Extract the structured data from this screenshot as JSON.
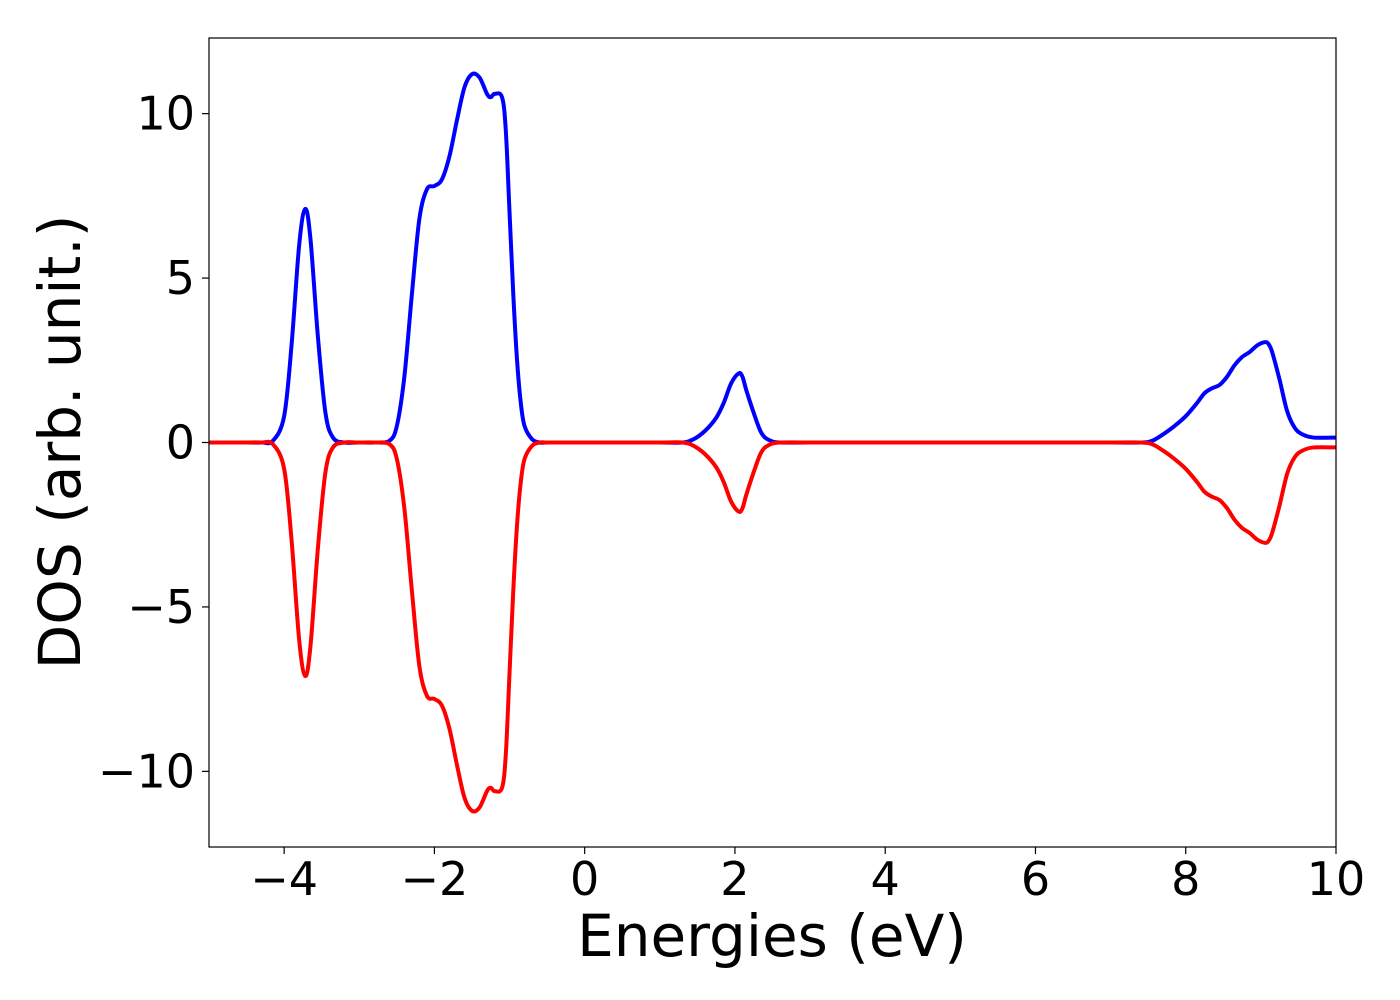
{
  "chart_data": {
    "type": "line",
    "xlabel": "Energies (eV)",
    "ylabel": "DOS (arb. unit.)",
    "xlim": [
      -5,
      10
    ],
    "ylim": [
      -12.3,
      12.3
    ],
    "xticks": [
      -4,
      -2,
      0,
      2,
      4,
      6,
      8,
      10
    ],
    "yticks": [
      -10,
      -5,
      0,
      5,
      10
    ],
    "xtick_labels": [
      "−4",
      "−2",
      "0",
      "2",
      "4",
      "6",
      "8",
      "10"
    ],
    "ytick_labels": [
      "−10",
      "−5",
      "0",
      "5",
      "10"
    ],
    "grid": false,
    "series": [
      {
        "color": "#0000ff",
        "x": [
          -5.0,
          -4.5,
          -4.3,
          -4.15,
          -4.0,
          -3.9,
          -3.8,
          -3.72,
          -3.65,
          -3.55,
          -3.45,
          -3.35,
          -3.2,
          -3.0,
          -2.8,
          -2.6,
          -2.5,
          -2.4,
          -2.3,
          -2.2,
          -2.1,
          -2.0,
          -1.9,
          -1.8,
          -1.7,
          -1.6,
          -1.5,
          -1.4,
          -1.3,
          -1.25,
          -1.2,
          -1.1,
          -1.05,
          -1.0,
          -0.95,
          -0.9,
          -0.85,
          -0.8,
          -0.7,
          -0.6,
          -0.5,
          -0.3,
          0.0,
          0.5,
          1.0,
          1.3,
          1.45,
          1.6,
          1.75,
          1.85,
          1.95,
          2.05,
          2.1,
          2.15,
          2.25,
          2.35,
          2.45,
          2.6,
          3.0,
          4.0,
          5.0,
          6.0,
          7.0,
          7.4,
          7.55,
          7.7,
          7.85,
          8.0,
          8.15,
          8.25,
          8.35,
          8.45,
          8.55,
          8.65,
          8.75,
          8.85,
          8.95,
          9.05,
          9.1,
          9.15,
          9.25,
          9.35,
          9.45,
          9.55,
          9.7,
          10.0
        ],
        "y": [
          0,
          0,
          0,
          0.05,
          0.8,
          3.0,
          6.0,
          7.1,
          6.2,
          3.2,
          0.9,
          0.15,
          0.0,
          0.0,
          0.0,
          0.05,
          0.5,
          2.0,
          4.5,
          6.8,
          7.7,
          7.8,
          8.0,
          8.7,
          9.8,
          10.8,
          11.2,
          11.1,
          10.6,
          10.5,
          10.6,
          10.5,
          9.5,
          7.0,
          4.5,
          2.5,
          1.2,
          0.5,
          0.1,
          0.0,
          0.0,
          0.0,
          0.0,
          0.0,
          0.0,
          0.0,
          0.1,
          0.35,
          0.75,
          1.2,
          1.8,
          2.1,
          2.0,
          1.6,
          0.9,
          0.3,
          0.08,
          0.0,
          0.0,
          0.0,
          0.0,
          0.0,
          0.0,
          0.0,
          0.05,
          0.25,
          0.5,
          0.8,
          1.2,
          1.5,
          1.65,
          1.75,
          2.0,
          2.35,
          2.6,
          2.75,
          2.95,
          3.05,
          3.0,
          2.75,
          1.9,
          0.95,
          0.45,
          0.25,
          0.15,
          0.15
        ]
      },
      {
        "color": "#ff0000",
        "x": [
          -5.0,
          -4.5,
          -4.3,
          -4.15,
          -4.0,
          -3.9,
          -3.8,
          -3.72,
          -3.65,
          -3.55,
          -3.45,
          -3.35,
          -3.2,
          -3.0,
          -2.8,
          -2.6,
          -2.5,
          -2.4,
          -2.3,
          -2.2,
          -2.1,
          -2.0,
          -1.9,
          -1.8,
          -1.7,
          -1.6,
          -1.5,
          -1.4,
          -1.3,
          -1.25,
          -1.2,
          -1.1,
          -1.05,
          -1.0,
          -0.95,
          -0.9,
          -0.85,
          -0.8,
          -0.7,
          -0.6,
          -0.5,
          -0.3,
          0.0,
          0.5,
          1.0,
          1.3,
          1.45,
          1.6,
          1.75,
          1.85,
          1.95,
          2.05,
          2.1,
          2.15,
          2.25,
          2.35,
          2.45,
          2.6,
          3.0,
          4.0,
          5.0,
          6.0,
          7.0,
          7.4,
          7.55,
          7.7,
          7.85,
          8.0,
          8.15,
          8.25,
          8.35,
          8.45,
          8.55,
          8.65,
          8.75,
          8.85,
          8.95,
          9.05,
          9.1,
          9.15,
          9.25,
          9.35,
          9.45,
          9.55,
          9.7,
          10.0
        ],
        "y": [
          0,
          0,
          0,
          -0.05,
          -0.8,
          -3.0,
          -6.0,
          -7.1,
          -6.2,
          -3.2,
          -0.9,
          -0.15,
          0.0,
          0.0,
          0.0,
          -0.05,
          -0.5,
          -2.0,
          -4.5,
          -6.8,
          -7.7,
          -7.8,
          -8.0,
          -8.7,
          -9.8,
          -10.8,
          -11.2,
          -11.1,
          -10.6,
          -10.5,
          -10.6,
          -10.5,
          -9.5,
          -7.0,
          -4.5,
          -2.5,
          -1.2,
          -0.5,
          -0.1,
          0.0,
          0.0,
          0.0,
          0.0,
          0.0,
          0.0,
          0.0,
          -0.1,
          -0.35,
          -0.75,
          -1.2,
          -1.8,
          -2.1,
          -2.0,
          -1.6,
          -0.9,
          -0.3,
          -0.08,
          0.0,
          0.0,
          0.0,
          0.0,
          0.0,
          0.0,
          0.0,
          -0.05,
          -0.25,
          -0.5,
          -0.8,
          -1.2,
          -1.5,
          -1.65,
          -1.75,
          -2.0,
          -2.35,
          -2.6,
          -2.75,
          -2.95,
          -3.05,
          -3.0,
          -2.75,
          -1.9,
          -0.95,
          -0.45,
          -0.25,
          -0.15,
          -0.15
        ]
      }
    ]
  }
}
